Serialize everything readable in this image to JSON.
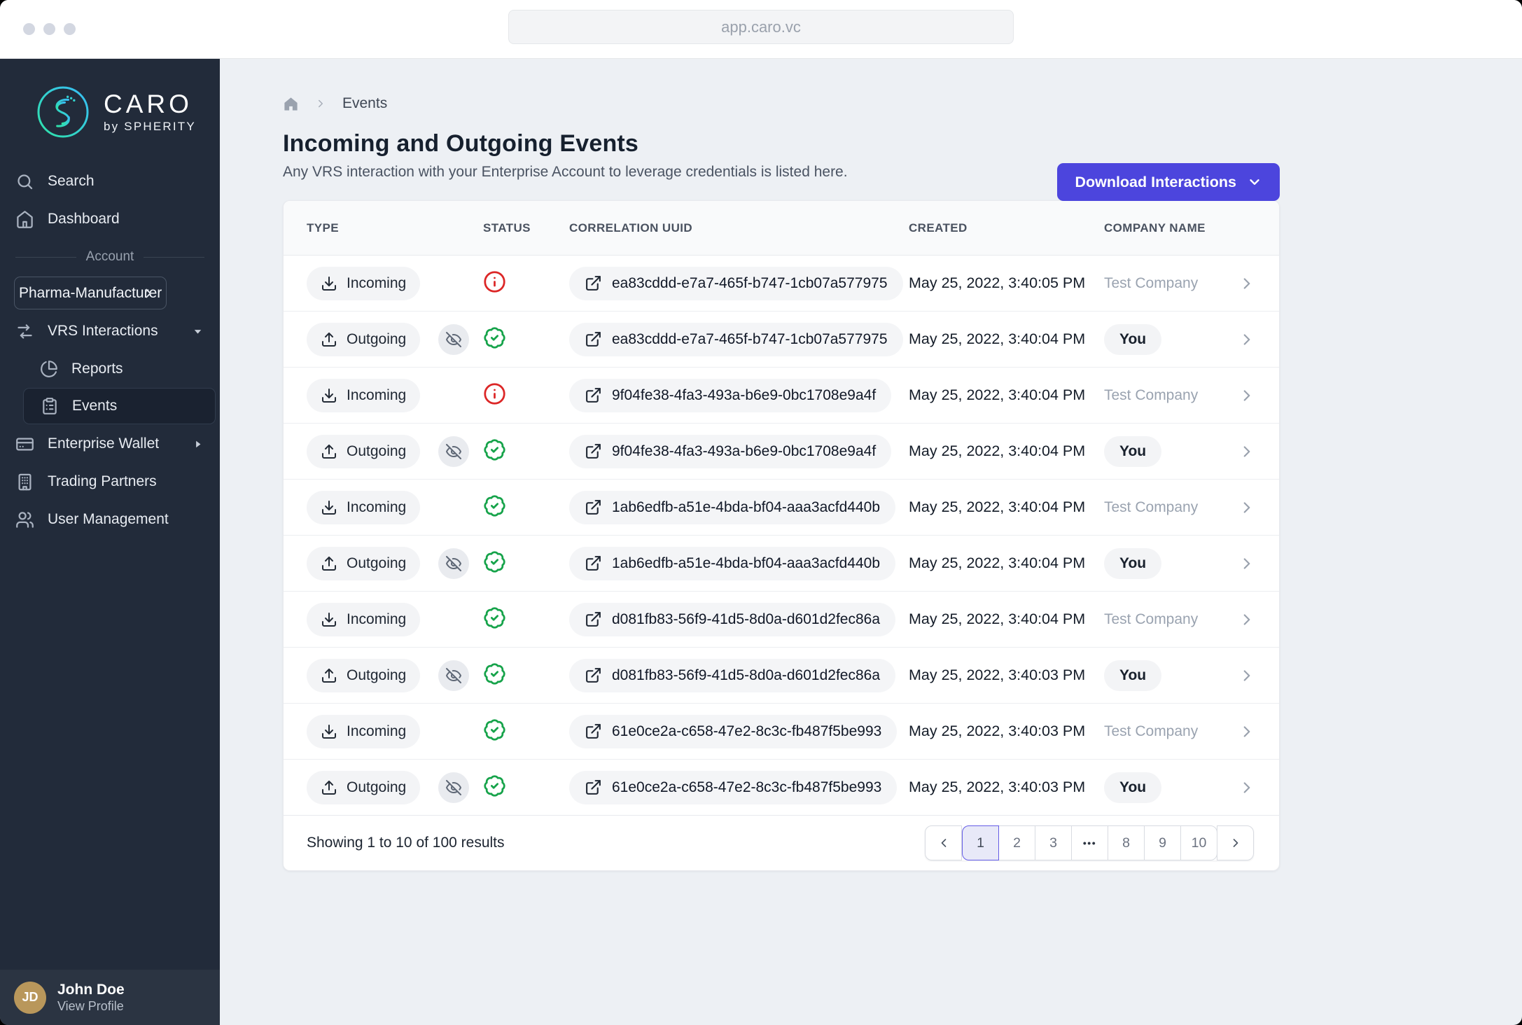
{
  "browser": {
    "url": "app.caro.vc"
  },
  "colors": {
    "accent": "#4c45dd",
    "sidebar_bg": "#222b3a",
    "page_bg": "#edf0f4",
    "success": "#16a34a",
    "error": "#dc2626",
    "logo_gradient": [
      "#2fe3a7",
      "#38bdf8"
    ],
    "avatar_bg": "#b9975b"
  },
  "sidebar": {
    "logo": {
      "brand": "CARO",
      "byline": "by SPHERITY"
    },
    "nav": [
      {
        "label": "Search",
        "icon": "search-icon"
      },
      {
        "label": "Dashboard",
        "icon": "home-icon"
      }
    ],
    "account_label": "Account",
    "account_switcher": "Pharma-Manufacturer",
    "vrs_group": {
      "label": "VRS Interactions",
      "icon": "exchange-arrows-icon",
      "children": [
        {
          "label": "Reports",
          "icon": "pie-chart-icon",
          "active": false
        },
        {
          "label": "Events",
          "icon": "clipboard-list-icon",
          "active": true
        }
      ]
    },
    "nav_bottom": [
      {
        "label": "Enterprise Wallet",
        "icon": "credit-card-icon",
        "has_submenu": true
      },
      {
        "label": "Trading Partners",
        "icon": "building-icon",
        "has_submenu": false
      },
      {
        "label": "User Management",
        "icon": "users-icon",
        "has_submenu": false
      }
    ],
    "profile": {
      "initials": "JD",
      "name": "John Doe",
      "link": "View Profile"
    }
  },
  "breadcrumb": {
    "current": "Events"
  },
  "page": {
    "title": "Incoming and Outgoing Events",
    "subtitle": "Any VRS interaction with your Enterprise Account to leverage credentials is listed here.",
    "download_button": "Download Interactions"
  },
  "table": {
    "columns": [
      "TYPE",
      "STATUS",
      "CORRELATION UUID",
      "CREATED",
      "COMPANY NAME"
    ],
    "icons": {
      "incoming": "download-icon",
      "outgoing": "upload-icon",
      "hidden": "eye-off-icon",
      "status_success": "badge-check-icon",
      "status_error": "info-circle-icon",
      "uuid": "external-link-icon"
    },
    "rows": [
      {
        "type": "Incoming",
        "hidden": false,
        "status": "error",
        "uuid": "ea83cddd-e7a7-465f-b747-1cb07a577975",
        "created": "May 25, 2022, 3:40:05 PM",
        "company": "Test Company",
        "company_style": "muted"
      },
      {
        "type": "Outgoing",
        "hidden": true,
        "status": "success",
        "uuid": "ea83cddd-e7a7-465f-b747-1cb07a577975",
        "created": "May 25, 2022, 3:40:04 PM",
        "company": "You",
        "company_style": "pill"
      },
      {
        "type": "Incoming",
        "hidden": false,
        "status": "error",
        "uuid": "9f04fe38-4fa3-493a-b6e9-0bc1708e9a4f",
        "created": "May 25, 2022, 3:40:04 PM",
        "company": "Test Company",
        "company_style": "muted"
      },
      {
        "type": "Outgoing",
        "hidden": true,
        "status": "success",
        "uuid": "9f04fe38-4fa3-493a-b6e9-0bc1708e9a4f",
        "created": "May 25, 2022, 3:40:04 PM",
        "company": "You",
        "company_style": "pill"
      },
      {
        "type": "Incoming",
        "hidden": false,
        "status": "success",
        "uuid": "1ab6edfb-a51e-4bda-bf04-aaa3acfd440b",
        "created": "May 25, 2022, 3:40:04 PM",
        "company": "Test Company",
        "company_style": "muted"
      },
      {
        "type": "Outgoing",
        "hidden": true,
        "status": "success",
        "uuid": "1ab6edfb-a51e-4bda-bf04-aaa3acfd440b",
        "created": "May 25, 2022, 3:40:04 PM",
        "company": "You",
        "company_style": "pill"
      },
      {
        "type": "Incoming",
        "hidden": false,
        "status": "success",
        "uuid": "d081fb83-56f9-41d5-8d0a-d601d2fec86a",
        "created": "May 25, 2022, 3:40:04 PM",
        "company": "Test Company",
        "company_style": "muted"
      },
      {
        "type": "Outgoing",
        "hidden": true,
        "status": "success",
        "uuid": "d081fb83-56f9-41d5-8d0a-d601d2fec86a",
        "created": "May 25, 2022, 3:40:03 PM",
        "company": "You",
        "company_style": "pill"
      },
      {
        "type": "Incoming",
        "hidden": false,
        "status": "success",
        "uuid": "61e0ce2a-c658-47e2-8c3c-fb487f5be993",
        "created": "May 25, 2022, 3:40:03 PM",
        "company": "Test Company",
        "company_style": "muted"
      },
      {
        "type": "Outgoing",
        "hidden": true,
        "status": "success",
        "uuid": "61e0ce2a-c658-47e2-8c3c-fb487f5be993",
        "created": "May 25, 2022, 3:40:03 PM",
        "company": "You",
        "company_style": "pill"
      }
    ]
  },
  "pagination": {
    "summary": "Showing 1 to 10 of 100 results",
    "pages": [
      "1",
      "2",
      "3",
      "•••",
      "8",
      "9",
      "10"
    ],
    "active_page": "1"
  }
}
